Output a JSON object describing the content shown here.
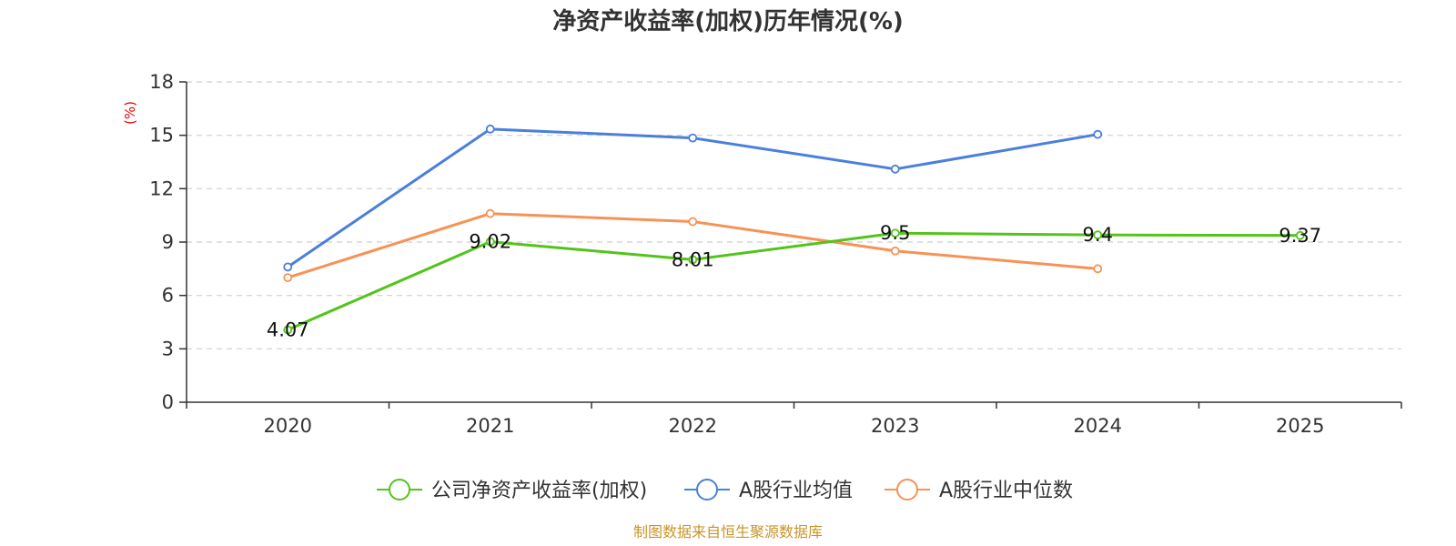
{
  "chart_data": {
    "type": "line",
    "title": "净资产收益率(加权)历年情况(%)",
    "ylabel": "(%)",
    "xlabel": "",
    "categories": [
      "2020",
      "2021",
      "2022",
      "2023",
      "2024",
      "2025"
    ],
    "ylim": [
      0,
      18
    ],
    "yticks": [
      0,
      3,
      6,
      9,
      12,
      15,
      18
    ],
    "grid": true,
    "legend_position": "bottom",
    "series": [
      {
        "name": "公司净资产收益率(加权)",
        "color": "#52c41a",
        "values": [
          4.07,
          9.02,
          8.01,
          9.5,
          9.4,
          9.37
        ],
        "labels": [
          "4.07",
          "9.02",
          "8.01",
          "9.5",
          "9.4",
          "9.37"
        ],
        "show_labels": true
      },
      {
        "name": "A股行业均值",
        "color": "#4a7fdc",
        "values": [
          7.6,
          15.35,
          14.85,
          13.1,
          15.05,
          null
        ],
        "show_labels": false
      },
      {
        "name": "A股行业中位数",
        "color": "#f79256",
        "values": [
          7.0,
          10.6,
          10.15,
          8.5,
          7.5,
          null
        ],
        "show_labels": false
      }
    ],
    "source": "制图数据来自恒生聚源数据库"
  }
}
